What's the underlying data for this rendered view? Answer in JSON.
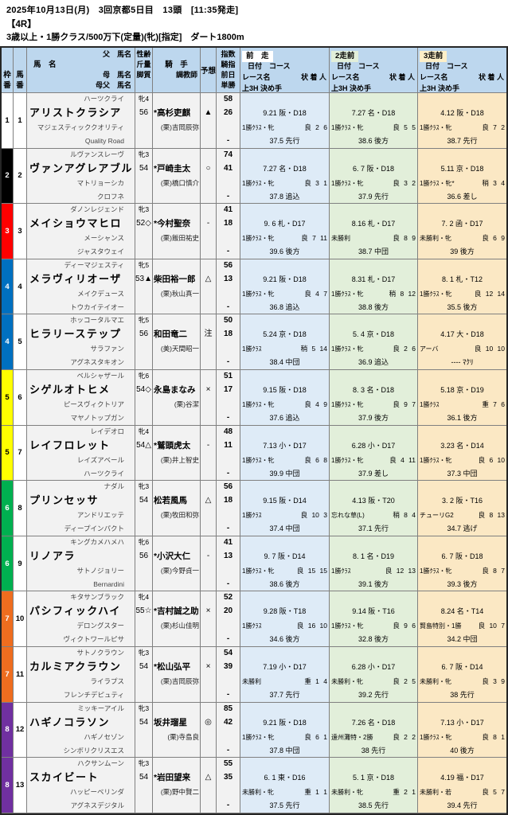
{
  "meta": {
    "date_line": "2025年10月13日(月)　3回京都5日目　13頭　[11:35発走]",
    "race_no": "【4R】",
    "conditions": "3歳以上・1勝クラス/500万下(定量)(牝)[指定]　ダート1800m"
  },
  "colors": {
    "header_bg": "#BDD7EE",
    "run1_bg": "#DEEBF7",
    "run2_bg": "#E2EFDA",
    "run3_bg": "#FBE8C4",
    "frame_colors": [
      "#FFFFFF",
      "#000000",
      "#FF0000",
      "#0070C0",
      "#FFFF00",
      "#00B050",
      "#EE6D1F",
      "#7030A0"
    ]
  },
  "table": {
    "header": {
      "waku": [
        "枠",
        "番"
      ],
      "uma": [
        "馬",
        "番"
      ],
      "ped": {
        "sire": "父　馬名",
        "name": "馬　名",
        "dam": "母　馬名",
        "damsire": "母父　馬名"
      },
      "profile": [
        "性齢",
        "斤量",
        "脚質"
      ],
      "jockey": "騎　手",
      "trainer": "調教師",
      "mark": "予想",
      "index": [
        "指数",
        "騎指",
        "前日",
        "単勝"
      ],
      "runs": [
        {
          "label": "前　走"
        },
        {
          "label": "2走前"
        },
        {
          "label": "3走前"
        }
      ],
      "sub": {
        "date": "日付　コース",
        "race": "レース名",
        "result": "状 着 人",
        "last": "上3H 決め手"
      }
    },
    "rows": [
      {
        "waku": "1",
        "waku_bg": "#FFFFFF",
        "waku_fg": "#000000",
        "num": "1",
        "sire": "ハーツクライ",
        "name": "アリストクラシア",
        "dam": "マジェスティッククオリティ",
        "damsire": "Quality Road",
        "sex_age": "牝4",
        "weight": "56",
        "jockey": "*高杉吏麒",
        "trainer": "(栗)吉岡辰弥",
        "mark": "▲",
        "idx": "58",
        "kishi": "26",
        "tansho": "-",
        "runs": [
          {
            "date": "9.21 阪・D18",
            "race": "1勝ｸﾗｽ・牝",
            "res": "良 2 6",
            "last": "37.5 先行"
          },
          {
            "date": "7.27 名・D18",
            "race": "1勝ｸﾗｽ・牝",
            "res": "良 5 5",
            "last": "38.6 後方"
          },
          {
            "date": "4.12 阪・D18",
            "race": "1勝ｸﾗｽ・牝",
            "res": "良 7 2",
            "last": "38.7 先行"
          }
        ]
      },
      {
        "waku": "2",
        "waku_bg": "#000000",
        "waku_fg": "#FFFFFF",
        "num": "2",
        "sire": "ルヴァンスレーヴ",
        "name": "ヴァンアグレアブル",
        "dam": "マトリョーシカ",
        "damsire": "クロフネ",
        "sex_age": "牝3",
        "weight": "54",
        "jockey": "*戸崎圭太",
        "trainer": "(栗)橋口慎介",
        "mark": "○",
        "idx": "74",
        "kishi": "41",
        "tansho": "-",
        "runs": [
          {
            "date": "7.27 名・D18",
            "race": "1勝ｸﾗｽ・牝",
            "res": "良 3 1",
            "last": "37.8 追込"
          },
          {
            "date": "6. 7 阪・D18",
            "race": "1勝ｸﾗｽ・牝",
            "res": "良 3 2",
            "last": "37.9 先行"
          },
          {
            "date": "5.11 京・D18",
            "race": "1勝ｸﾗｽ・牝*",
            "res": "稍 3 4",
            "last": "36.6 差し"
          }
        ]
      },
      {
        "waku": "3",
        "waku_bg": "#FF0000",
        "waku_fg": "#FFFFFF",
        "num": "3",
        "sire": "ダノンレジェンド",
        "name": "メイショウマヒロ",
        "dam": "メーシャンス",
        "damsire": "ジャスタウェイ",
        "sex_age": "牝3",
        "weight": "52◇",
        "jockey": "*今村聖奈",
        "trainer": "(栗)飯田祐史",
        "mark": "-",
        "idx": "41",
        "kishi": "18",
        "tansho": "-",
        "runs": [
          {
            "date": "9. 6 札・D17",
            "race": "1勝ｸﾗｽ・牝",
            "res": "良 7 11",
            "last": "39.6 後方"
          },
          {
            "date": "8.16 札・D17",
            "race": "未勝利",
            "res": "良 8 9",
            "last": "38.7 中団"
          },
          {
            "date": "7. 2 函・D17",
            "race": "未勝利・牝",
            "res": "良 6 9",
            "last": "39 後方"
          }
        ]
      },
      {
        "waku": "4",
        "waku_bg": "#0070C0",
        "waku_fg": "#FFFFFF",
        "num": "4",
        "sire": "ディーマジェスティ",
        "name": "メラヴィリオーザ",
        "dam": "メイクデュース",
        "damsire": "トウカイテイオー",
        "sex_age": "牝5",
        "weight": "53▲",
        "jockey": "柴田裕一郎",
        "trainer": "(栗)秋山真一",
        "mark": "△",
        "idx": "56",
        "kishi": "13",
        "tansho": "-",
        "runs": [
          {
            "date": "9.21 阪・D18",
            "race": "1勝ｸﾗｽ・牝",
            "res": "良 4 7",
            "last": "36.8 追込"
          },
          {
            "date": "8.31 札・D17",
            "race": "1勝ｸﾗｽ・牝",
            "res": "稍 8 12",
            "last": "38.8 後方"
          },
          {
            "date": "8. 1 札・T12",
            "race": "1勝ｸﾗｽ・牝",
            "res": "良 12 14",
            "last": "35.5 後方"
          }
        ]
      },
      {
        "waku": "4",
        "waku_bg": "#0070C0",
        "waku_fg": "#FFFFFF",
        "num": "5",
        "sire": "ホッコータルマエ",
        "name": "ヒラリーステップ",
        "dam": "サラファン",
        "damsire": "アグネスタキオン",
        "sex_age": "牝5",
        "weight": "56",
        "jockey": "和田竜二",
        "trainer": "(美)天間昭一",
        "mark": "注",
        "idx": "50",
        "kishi": "18",
        "tansho": "-",
        "runs": [
          {
            "date": "5.24 京・D18",
            "race": "1勝ｸﾗｽ",
            "res": "稍 5 14",
            "last": "38.4 中団"
          },
          {
            "date": "5. 4 京・D18",
            "race": "1勝ｸﾗｽ・牝",
            "res": "良 2 6",
            "last": "36.9 追込"
          },
          {
            "date": "4.17 大・D18",
            "race": "アーバ",
            "res": "良 10 10",
            "last": "---- ﾏｸﾘ"
          }
        ]
      },
      {
        "waku": "5",
        "waku_bg": "#FFFF00",
        "waku_fg": "#000000",
        "num": "6",
        "sire": "ベルシャザール",
        "name": "シゲルオトヒメ",
        "dam": "ピースヴィクトリア",
        "damsire": "マヤノトップガン",
        "sex_age": "牝6",
        "weight": "54◇",
        "jockey": "永島まなみ",
        "trainer": "(栗)谷潔",
        "mark": "×",
        "idx": "51",
        "kishi": "17",
        "tansho": "-",
        "runs": [
          {
            "date": "9.15 阪・D18",
            "race": "1勝ｸﾗｽ・牝",
            "res": "良 4 9",
            "last": "37.6 追込"
          },
          {
            "date": "8. 3 名・D18",
            "race": "1勝ｸﾗｽ・牝",
            "res": "良 9 7",
            "last": "37.9 後方"
          },
          {
            "date": "5.18 京・D19",
            "race": "1勝ｸﾗｽ",
            "res": "重 7 6",
            "last": "36.1 後方"
          }
        ]
      },
      {
        "waku": "5",
        "waku_bg": "#FFFF00",
        "waku_fg": "#000000",
        "num": "7",
        "sire": "レイデオロ",
        "name": "レイフロレット",
        "dam": "レイズアベール",
        "damsire": "ハーツクライ",
        "sex_age": "牝4",
        "weight": "54△",
        "jockey": "*鷲頭虎太",
        "trainer": "(栗)井上智史",
        "mark": "-",
        "idx": "48",
        "kishi": "11",
        "tansho": "-",
        "runs": [
          {
            "date": "7.13 小・D17",
            "race": "1勝ｸﾗｽ・牝",
            "res": "良 6 8",
            "last": "39.9 中団"
          },
          {
            "date": "6.28 小・D17",
            "race": "1勝ｸﾗｽ・牝",
            "res": "良 4 11",
            "last": "37.9 差し"
          },
          {
            "date": "3.23 名・D14",
            "race": "1勝ｸﾗｽ・牝",
            "res": "良 6 10",
            "last": "37.3 中団"
          }
        ]
      },
      {
        "waku": "6",
        "waku_bg": "#00B050",
        "waku_fg": "#FFFFFF",
        "num": "8",
        "sire": "ナダル",
        "name": "プリンセッサ",
        "dam": "アンドリエッテ",
        "damsire": "ディープインパクト",
        "sex_age": "牝3",
        "weight": "54",
        "jockey": "松若風馬",
        "trainer": "(栗)牧田和弥",
        "mark": "△",
        "idx": "56",
        "kishi": "18",
        "tansho": "-",
        "runs": [
          {
            "date": "9.15 阪・D14",
            "race": "1勝ｸﾗｽ",
            "res": "良 10 3",
            "last": "37.4 中団"
          },
          {
            "date": "4.13 阪・T20",
            "race": "忘れな草(L)",
            "res": "稍 8 4",
            "last": "37.1 先行"
          },
          {
            "date": "3. 2 阪・T16",
            "race": "チューリG2",
            "res": "良 8 13",
            "last": "34.7 逃げ"
          }
        ]
      },
      {
        "waku": "6",
        "waku_bg": "#00B050",
        "waku_fg": "#FFFFFF",
        "num": "9",
        "sire": "キングカメハメハ",
        "name": "リノアラ",
        "dam": "サトノジョリー",
        "damsire": "Bernardini",
        "sex_age": "牝6",
        "weight": "56",
        "jockey": "*小沢大仁",
        "trainer": "(栗)今野貞一",
        "mark": "-",
        "idx": "41",
        "kishi": "13",
        "tansho": "-",
        "runs": [
          {
            "date": "9. 7 阪・D14",
            "race": "1勝ｸﾗｽ・牝",
            "res": "良 15 15",
            "last": "38.6 後方"
          },
          {
            "date": "8. 1 名・D19",
            "race": "1勝ｸﾗｽ",
            "res": "良 12 13",
            "last": "39.1 後方"
          },
          {
            "date": "6. 7 阪・D18",
            "race": "1勝ｸﾗｽ・牝",
            "res": "良 8 7",
            "last": "39.3 後方"
          }
        ]
      },
      {
        "waku": "7",
        "waku_bg": "#EE6D1F",
        "waku_fg": "#FFFFFF",
        "num": "10",
        "sire": "キタサンブラック",
        "name": "パシフィックハイ",
        "dam": "デロングスター",
        "damsire": "ヴィクトワールピサ",
        "sex_age": "牝4",
        "weight": "55☆",
        "jockey": "*吉村誠之助",
        "trainer": "(栗)杉山佳明",
        "mark": "×",
        "idx": "52",
        "kishi": "20",
        "tansho": "-",
        "runs": [
          {
            "date": "9.28 阪・T18",
            "race": "1勝ｸﾗｽ",
            "res": "良 16 10",
            "last": "34.6 後方"
          },
          {
            "date": "9.14 阪・T16",
            "race": "1勝ｸﾗｽ・牝",
            "res": "良 9 6",
            "last": "32.8 後方"
          },
          {
            "date": "8.24 名・T14",
            "race": "賢島特別・1勝",
            "res": "良 10 7",
            "last": "34.2 中団"
          }
        ]
      },
      {
        "waku": "7",
        "waku_bg": "#EE6D1F",
        "waku_fg": "#FFFFFF",
        "num": "11",
        "sire": "サトノクラウン",
        "name": "カルミアクラウン",
        "dam": "ライラプス",
        "damsire": "フレンチデピュティ",
        "sex_age": "牝3",
        "weight": "54",
        "jockey": "*松山弘平",
        "trainer": "(栗)吉岡辰弥",
        "mark": "×",
        "idx": "54",
        "kishi": "39",
        "tansho": "-",
        "runs": [
          {
            "date": "7.19 小・D17",
            "race": "未勝利",
            "res": "重 1 4",
            "last": "37.7 先行"
          },
          {
            "date": "6.28 小・D17",
            "race": "未勝利・牝",
            "res": "良 2 5",
            "last": "39.2 先行"
          },
          {
            "date": "6. 7 阪・D14",
            "race": "未勝利・牝",
            "res": "良 3 9",
            "last": "38 先行"
          }
        ]
      },
      {
        "waku": "8",
        "waku_bg": "#7030A0",
        "waku_fg": "#FFFFFF",
        "num": "12",
        "sire": "ミッキーアイル",
        "name": "ハギノコラソン",
        "dam": "ハギノセゾン",
        "damsire": "シンボリクリスエス",
        "sex_age": "牝3",
        "weight": "54",
        "jockey": "坂井瑠星",
        "trainer": "(栗)寺島良",
        "mark": "◎",
        "idx": "85",
        "kishi": "42",
        "tansho": "-",
        "runs": [
          {
            "date": "9.21 阪・D18",
            "race": "1勝ｸﾗｽ・牝",
            "res": "良 6 1",
            "last": "37.8 中団"
          },
          {
            "date": "7.26 名・D18",
            "race": "遠州灘特・2勝",
            "res": "良 2 2",
            "last": "38 先行"
          },
          {
            "date": "7.13 小・D17",
            "race": "1勝ｸﾗｽ・牝",
            "res": "良 8 1",
            "last": "40 後方"
          }
        ]
      },
      {
        "waku": "8",
        "waku_bg": "#7030A0",
        "waku_fg": "#FFFFFF",
        "num": "13",
        "sire": "ハクサンムーン",
        "name": "スカイビート",
        "dam": "ハッピーベリンダ",
        "damsire": "アグネスデジタル",
        "sex_age": "牝3",
        "weight": "54",
        "jockey": "*岩田望来",
        "trainer": "(栗)野中賢二",
        "mark": "△",
        "idx": "55",
        "kishi": "35",
        "tansho": "-",
        "runs": [
          {
            "date": "6. 1 東・D16",
            "race": "未勝利・牝",
            "res": "重 1 1",
            "last": "37.5 先行"
          },
          {
            "date": "5. 1 京・D18",
            "race": "未勝利・牝",
            "res": "重 2 1",
            "last": "38.5 先行"
          },
          {
            "date": "4.19 福・D17",
            "race": "未勝利・若",
            "res": "良 5 7",
            "last": "39.4 先行"
          }
        ]
      }
    ]
  }
}
